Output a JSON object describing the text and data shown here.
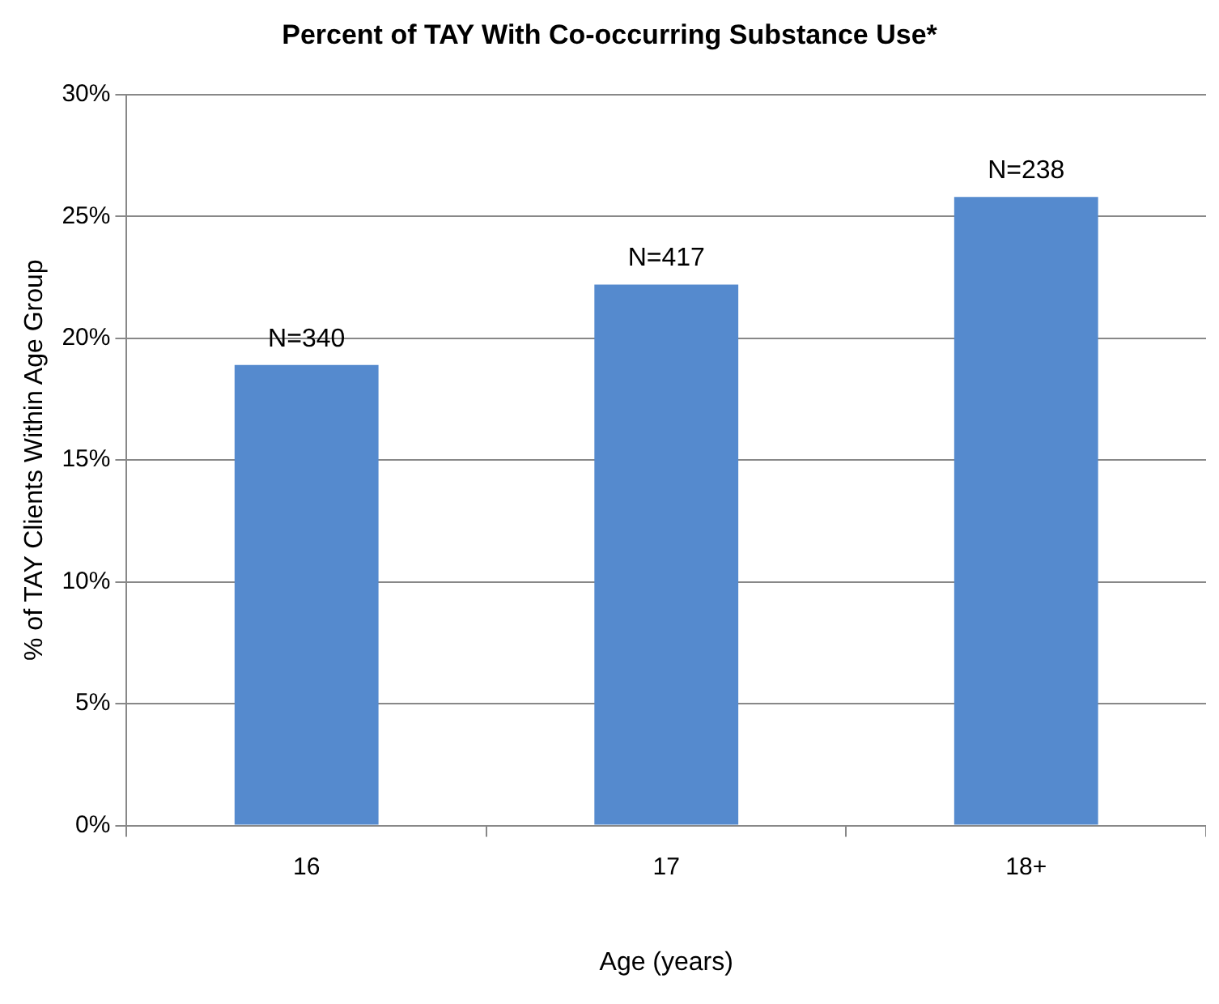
{
  "chart_data": {
    "type": "bar",
    "title": "Percent of TAY With Co-occurring Substance Use*",
    "xlabel": "Age (years)",
    "ylabel": "% of TAY Clients Within Age Group",
    "categories": [
      "16",
      "17",
      "18+"
    ],
    "series": [
      {
        "color": "#558ace",
        "values": [
          18.9,
          22.2,
          25.8
        ]
      }
    ],
    "annotations": [
      {
        "text": "N=340",
        "x": "16",
        "y": 18.9
      },
      {
        "text": "N=417",
        "x": "17",
        "y": 22.2
      },
      {
        "text": "N=238",
        "x": "18+",
        "y": 25.8
      }
    ],
    "ylim": [
      0,
      30
    ],
    "yticks": [
      {
        "value": 0,
        "label": "0%"
      },
      {
        "value": 5,
        "label": "5%"
      },
      {
        "value": 10,
        "label": "10%"
      },
      {
        "value": 15,
        "label": "15%"
      },
      {
        "value": 20,
        "label": "20%"
      },
      {
        "value": 25,
        "label": "25%"
      },
      {
        "value": 30,
        "label": "30%"
      }
    ],
    "grid": "y",
    "legend": false
  }
}
